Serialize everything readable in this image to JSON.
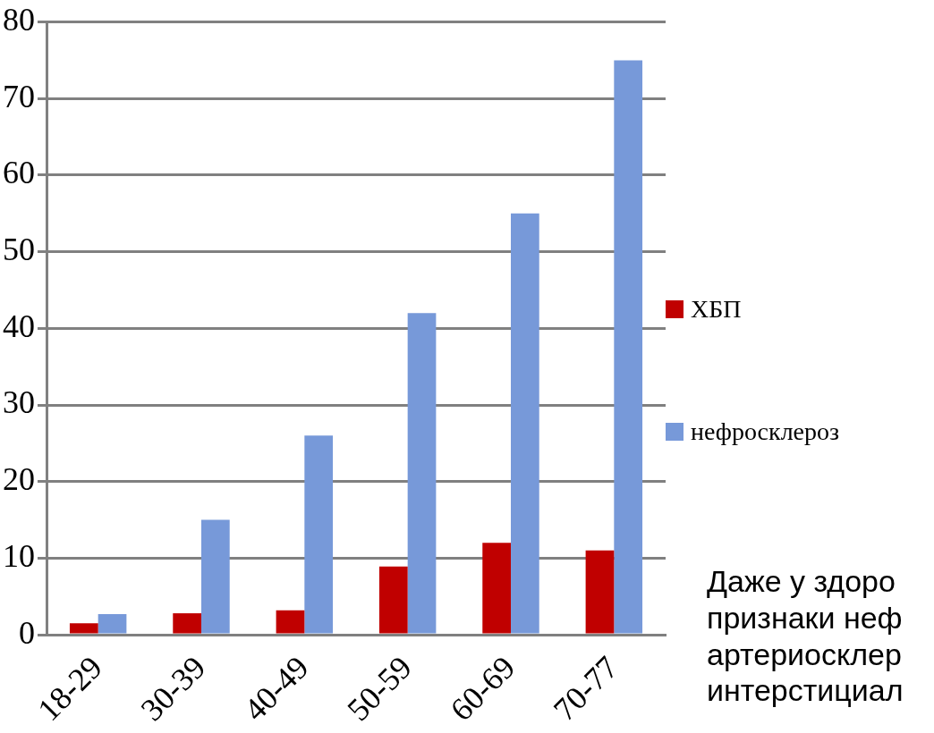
{
  "chart_data": {
    "type": "bar",
    "categories": [
      "18-29",
      "30-39",
      "40-49",
      "50-59",
      "60-69",
      "70-77"
    ],
    "series": [
      {
        "name": "ХБП",
        "color": "#c00000",
        "values": [
          1.5,
          2.8,
          3.2,
          8.9,
          12,
          11
        ]
      },
      {
        "name": "нефросклероз",
        "color": "#7799d9",
        "values": [
          2.7,
          15,
          26,
          42,
          55,
          75
        ]
      }
    ],
    "ylim": [
      0,
      80
    ],
    "yticks": [
      0,
      10,
      20,
      30,
      40,
      50,
      60,
      70,
      80
    ],
    "grid": "y",
    "legend": "right",
    "annotations": [
      "Даже у здоро\nпризнаки неф\nартериосклер\nинтерстициал"
    ]
  }
}
